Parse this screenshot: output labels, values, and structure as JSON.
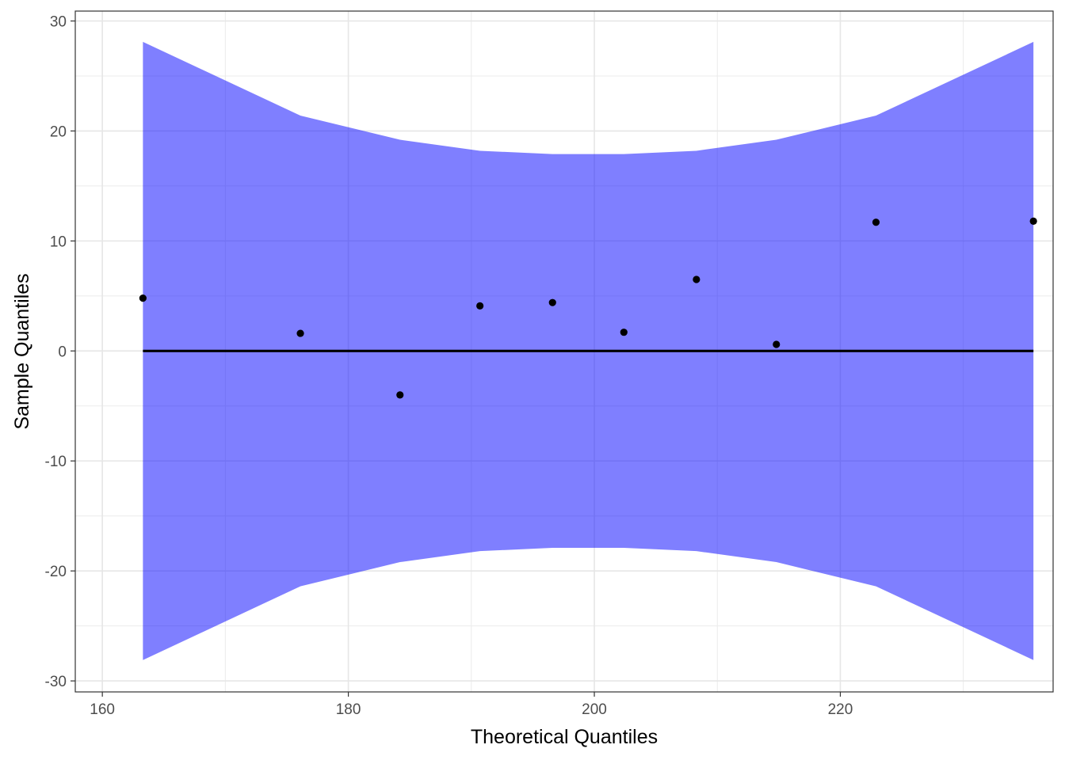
{
  "chart_data": {
    "type": "scatter",
    "title": "",
    "xlabel": "Theoretical Quantiles",
    "ylabel": "Sample Quantiles",
    "xlim": [
      157.8,
      237.3
    ],
    "ylim": [
      -31.0,
      30.9
    ],
    "x_ticks": [
      160,
      180,
      200,
      220
    ],
    "x_tick_labels": [
      "160",
      "180",
      "200",
      "220"
    ],
    "x_minor_ticks": [
      170,
      190,
      210,
      230
    ],
    "y_ticks": [
      -30,
      -20,
      -10,
      0,
      10,
      20,
      30
    ],
    "y_tick_labels": [
      "-30",
      "-20",
      "-10",
      "0",
      "10",
      "20",
      "30"
    ],
    "y_minor_ticks": [
      -25,
      -15,
      -5,
      5,
      15,
      25
    ],
    "grid": true,
    "legend": "none",
    "points": {
      "x": [
        163.3,
        176.1,
        184.2,
        190.7,
        196.6,
        202.4,
        208.3,
        214.8,
        222.9,
        235.7
      ],
      "y": [
        4.8,
        1.6,
        -4.0,
        4.1,
        4.4,
        1.7,
        6.5,
        0.6,
        11.7,
        11.8
      ],
      "color": "#000000"
    },
    "reference_line": {
      "x": [
        163.3,
        235.7
      ],
      "y": [
        0,
        0
      ],
      "color": "#000000"
    },
    "confidence_band": {
      "x": [
        163.3,
        176.1,
        184.2,
        190.7,
        196.6,
        202.4,
        208.3,
        214.8,
        222.9,
        235.7
      ],
      "upper": [
        28.1,
        21.4,
        19.2,
        18.2,
        17.9,
        17.9,
        18.2,
        19.2,
        21.4,
        28.1
      ],
      "lower": [
        -28.1,
        -21.4,
        -19.2,
        -18.2,
        -17.9,
        -17.9,
        -18.2,
        -19.2,
        -21.4,
        -28.1
      ],
      "color": "#0000ff",
      "opacity": 0.5
    }
  }
}
